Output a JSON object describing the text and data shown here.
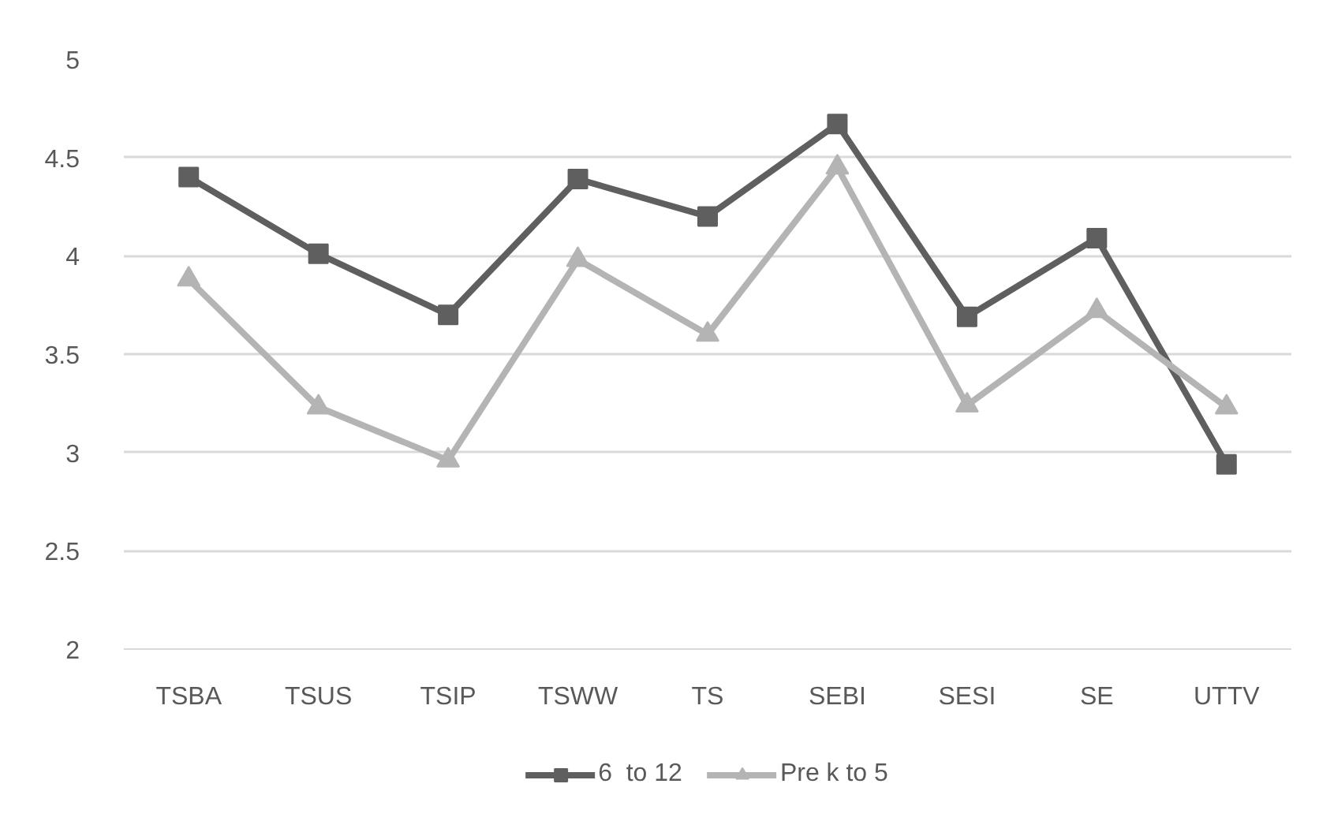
{
  "chart_data": {
    "type": "line",
    "categories": [
      "TSBA",
      "TSUS",
      "TSIP",
      "TSWW",
      "TS",
      "SEBI",
      "SESI",
      "SE",
      "UTTV"
    ],
    "series": [
      {
        "name": "6  to 12",
        "color": "#5f5f5f",
        "marker": "square",
        "values": [
          4.4,
          4.01,
          3.7,
          4.39,
          4.2,
          4.67,
          3.69,
          4.09,
          2.94
        ]
      },
      {
        "name": "Pre k to 5",
        "color": "#b4b4b4",
        "marker": "triangle",
        "values": [
          3.88,
          3.23,
          2.96,
          3.98,
          3.6,
          4.45,
          3.24,
          3.72,
          3.23
        ]
      }
    ],
    "ylim": [
      2,
      5
    ],
    "yticks": [
      2,
      2.5,
      3,
      3.5,
      4,
      4.5,
      5
    ],
    "grid": "y",
    "legend": "bottom",
    "line_style": "solid"
  }
}
